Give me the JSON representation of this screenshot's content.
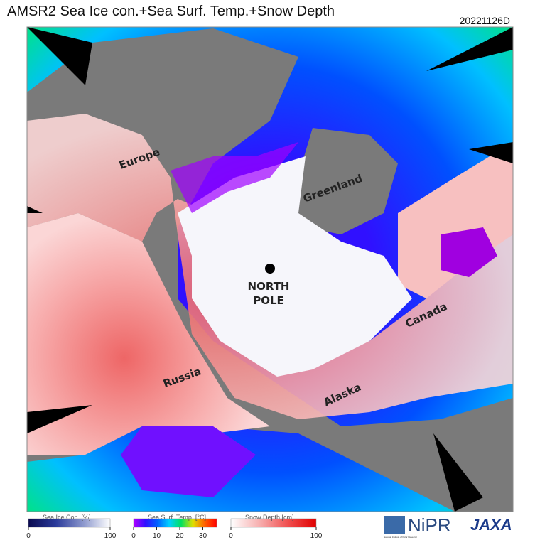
{
  "header": {
    "title": "AMSR2 Sea Ice con.+Sea Surf. Temp.+Snow Depth",
    "date": "20221126D"
  },
  "map": {
    "labels": [
      {
        "text": "Europe"
      },
      {
        "text": "Greenland"
      },
      {
        "lines": [
          "NORTH",
          "POLE"
        ]
      },
      {
        "text": "Canada"
      },
      {
        "text": "Russia"
      },
      {
        "text": "Alaska"
      }
    ]
  },
  "legends": [
    {
      "title": "Sea Ice Con. [%]",
      "range": [
        0,
        100
      ],
      "ticks": [
        0,
        100
      ],
      "colors": [
        "#0a0a50",
        "#2a3a9a",
        "#8a96cc",
        "#ffffff"
      ]
    },
    {
      "title": "Sea Surf. Temp. [°C]",
      "range": [
        0,
        36
      ],
      "ticks": [
        0,
        10,
        20,
        30
      ],
      "colors": [
        "#b000ff",
        "#3010ff",
        "#0060ff",
        "#00d0ff",
        "#00e060",
        "#e0e000",
        "#ff6000",
        "#ff0000"
      ]
    },
    {
      "title": "Snow Depth [cm]",
      "range": [
        0,
        100
      ],
      "ticks": [
        0,
        100
      ],
      "colors": [
        "#ffffff",
        "#f7b0b0",
        "#f05050",
        "#e00000"
      ]
    }
  ],
  "logos": {
    "nipr": "NiPR",
    "nipr_sub": "National Institute of Polar Research",
    "jaxa": "JAXA"
  }
}
